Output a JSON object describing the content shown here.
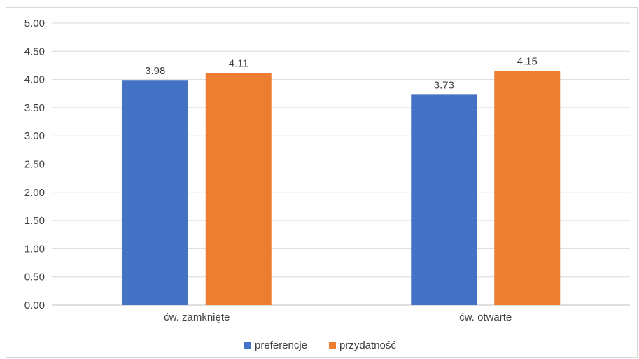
{
  "chart_data": {
    "type": "bar",
    "categories": [
      "ćw. zamknięte",
      "ćw. otwarte"
    ],
    "series": [
      {
        "name": "preferencje",
        "values": [
          3.98,
          3.73
        ],
        "color": "#4472C4"
      },
      {
        "name": "przydatność",
        "values": [
          4.11,
          4.15
        ],
        "color": "#ED7D31"
      }
    ],
    "ylim": [
      0,
      5
    ],
    "ytick_labels": [
      "0.00",
      "0.50",
      "1.00",
      "1.50",
      "2.00",
      "2.50",
      "3.00",
      "3.50",
      "4.00",
      "4.50",
      "5.00"
    ],
    "data_labels": [
      [
        "3.98",
        "3.73"
      ],
      [
        "4.11",
        "4.15"
      ]
    ],
    "grid": true,
    "legend": "bottom-center",
    "title": "",
    "xlabel": "",
    "ylabel": ""
  }
}
